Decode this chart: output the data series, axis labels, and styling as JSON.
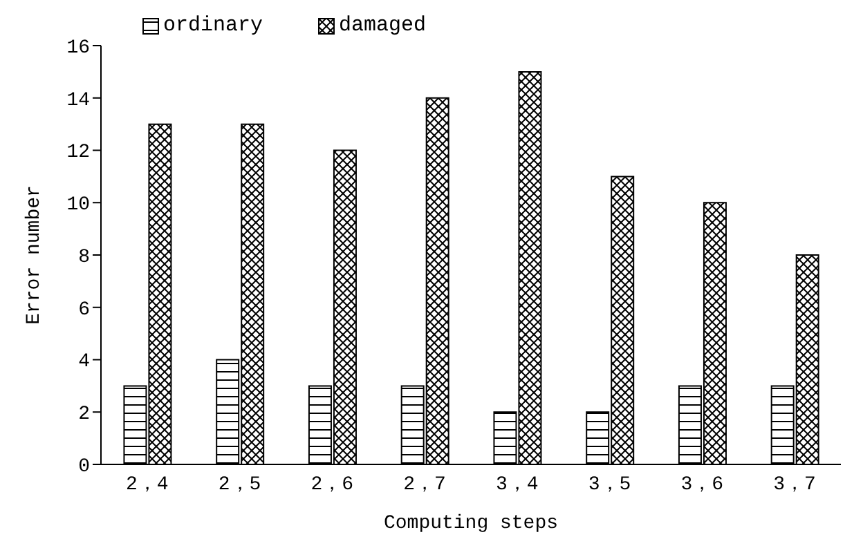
{
  "chart_data": {
    "type": "bar",
    "xlabel": "Computing steps",
    "ylabel": "Error number",
    "categories": [
      "2，4",
      "2，5",
      "2，6",
      "2，7",
      "3，4",
      "3，5",
      "3，6",
      "3，7"
    ],
    "series": [
      {
        "name": "ordinary",
        "color": "#000000",
        "values": [
          3,
          4,
          3,
          3,
          2,
          2,
          3,
          3
        ]
      },
      {
        "name": "damaged",
        "color": "#000000",
        "values": [
          13,
          13,
          12,
          14,
          15,
          11,
          10,
          8
        ]
      }
    ],
    "ylim": [
      0,
      16
    ],
    "yticks": [
      0,
      2,
      4,
      6,
      8,
      10,
      12,
      14,
      16
    ],
    "grid": false,
    "legend": "top left"
  }
}
